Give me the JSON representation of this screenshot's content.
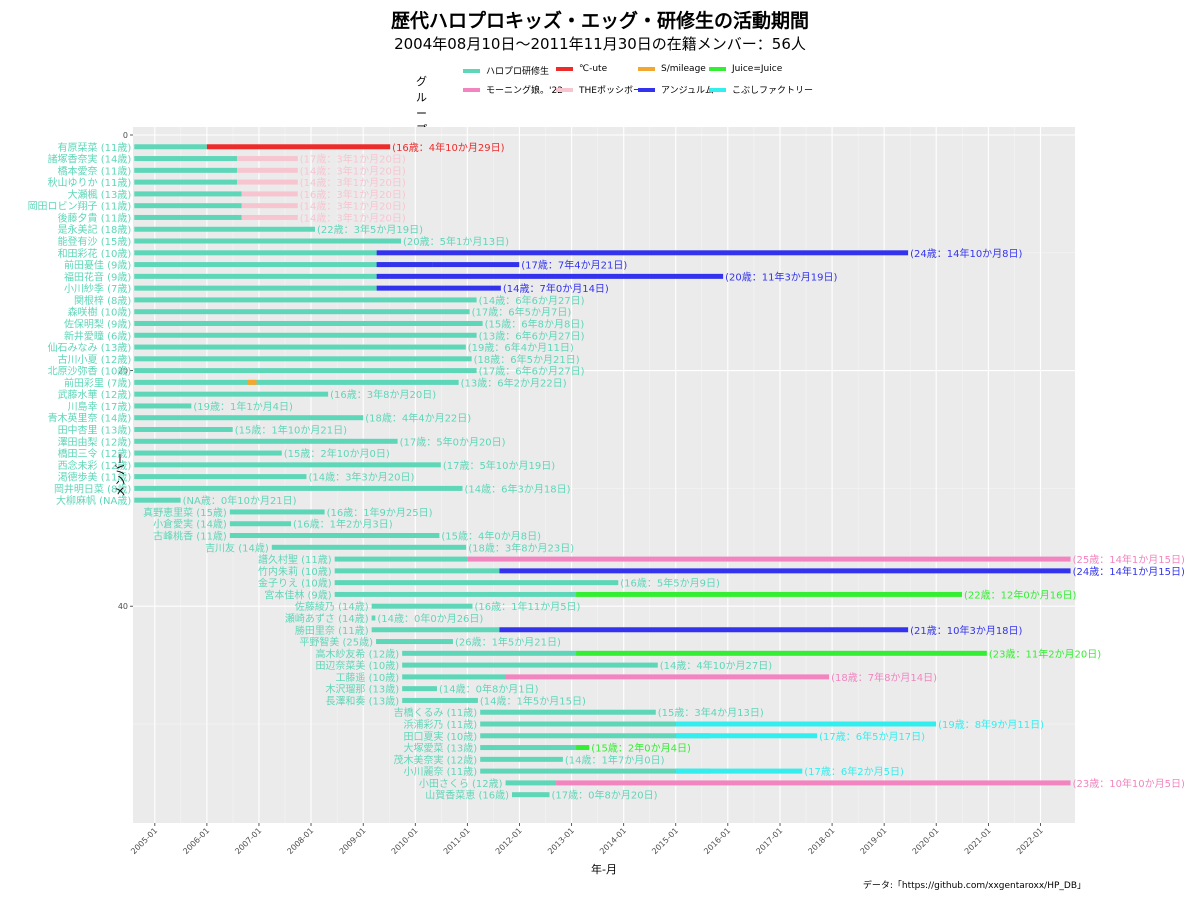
{
  "header": {
    "title": "歴代ハロプロキッズ・エッグ・研修生の活動期間",
    "subtitle": "2004年08月10日～2011年11月30日の在籍メンバー：56人"
  },
  "legend": {
    "title": "グループ",
    "items": [
      {
        "label": "ハロプロ研修生",
        "color": "#5ed6b8"
      },
      {
        "label": "モーニング娘。'22",
        "color": "#f285c0"
      },
      {
        "label": "℃-ute",
        "color": "#ee2b2b"
      },
      {
        "label": "THEポッシボー",
        "color": "#f7c5d0"
      },
      {
        "label": "S/mileage",
        "color": "#f2a830"
      },
      {
        "label": "アンジュルム",
        "color": "#3333ee"
      },
      {
        "label": "Juice=Juice",
        "color": "#33ee33"
      },
      {
        "label": "こぶしファクトリー",
        "color": "#33eeee"
      }
    ]
  },
  "caption": "データ:「https://github.com/xxgentaroxx/HP_DB」",
  "chart_data": {
    "type": "gantt",
    "xlabel": "年-月",
    "ylabel": "メンバー",
    "x_ticks": [
      "2005-01",
      "2006-01",
      "2007-01",
      "2008-01",
      "2009-01",
      "2010-01",
      "2011-01",
      "2012-01",
      "2013-01",
      "2014-01",
      "2015-01",
      "2016-01",
      "2017-01",
      "2018-01",
      "2019-01",
      "2020-01",
      "2021-01",
      "2022-01"
    ],
    "y_ticks": [
      "0",
      "20",
      "40"
    ],
    "xlim": [
      "2004-08-01",
      "2022-08-31"
    ],
    "grid": true,
    "rows": [
      {
        "label": "有原栞菜 (11歳)",
        "note": "(16歳：4年10か月29日)",
        "note_color": "#ee2b2b",
        "segs": [
          [
            "2004-08-10",
            "2006-01-01",
            "#5ed6b8"
          ],
          [
            "2006-01-01",
            "2009-07-09",
            "#ee2b2b"
          ]
        ]
      },
      {
        "label": "諸塚香奈実 (14歳)",
        "note": "(17歳：3年1か月20日)",
        "note_color": "#f7c5d0",
        "segs": [
          [
            "2004-08-10",
            "2006-08-01",
            "#5ed6b8"
          ],
          [
            "2006-08-01",
            "2007-09-30",
            "#f7c5d0"
          ]
        ]
      },
      {
        "label": "橋本愛奈 (11歳)",
        "note": "(14歳：3年1か月20日)",
        "note_color": "#f7c5d0",
        "segs": [
          [
            "2004-08-10",
            "2006-08-01",
            "#5ed6b8"
          ],
          [
            "2006-08-01",
            "2007-09-30",
            "#f7c5d0"
          ]
        ]
      },
      {
        "label": "秋山ゆりか (11歳)",
        "note": "(14歳：3年1か月20日)",
        "note_color": "#f7c5d0",
        "segs": [
          [
            "2004-08-10",
            "2006-08-01",
            "#5ed6b8"
          ],
          [
            "2006-08-01",
            "2007-09-30",
            "#f7c5d0"
          ]
        ]
      },
      {
        "label": "大瀬楓 (13歳)",
        "note": "(16歳：3年1か月20日)",
        "note_color": "#f7c5d0",
        "segs": [
          [
            "2004-08-10",
            "2006-09-01",
            "#5ed6b8"
          ],
          [
            "2006-09-01",
            "2007-09-30",
            "#f7c5d0"
          ]
        ]
      },
      {
        "label": "岡田ロビン翔子 (11歳)",
        "note": "(14歳：3年1か月20日)",
        "note_color": "#f7c5d0",
        "segs": [
          [
            "2004-08-10",
            "2006-09-01",
            "#5ed6b8"
          ],
          [
            "2006-09-01",
            "2007-09-30",
            "#f7c5d0"
          ]
        ]
      },
      {
        "label": "後藤夕貴 (11歳)",
        "note": "(14歳：3年1か月20日)",
        "note_color": "#f7c5d0",
        "segs": [
          [
            "2004-08-10",
            "2006-09-01",
            "#5ed6b8"
          ],
          [
            "2006-09-01",
            "2007-09-30",
            "#f7c5d0"
          ]
        ]
      },
      {
        "label": "是永美記 (18歳)",
        "note": "(22歳：3年5か月19日)",
        "note_color": "#5ed6b8",
        "segs": [
          [
            "2004-08-10",
            "2008-01-29",
            "#5ed6b8"
          ]
        ]
      },
      {
        "label": "能登有沙 (15歳)",
        "note": "(20歳：5年1か月13日)",
        "note_color": "#5ed6b8",
        "segs": [
          [
            "2004-08-10",
            "2009-09-23",
            "#5ed6b8"
          ]
        ]
      },
      {
        "label": "和田彩花 (10歳)",
        "note": "(24歳：14年10か月8日)",
        "note_color": "#3333ee",
        "segs": [
          [
            "2004-08-10",
            "2009-04-05",
            "#5ed6b8"
          ],
          [
            "2009-04-05",
            "2019-06-18",
            "#3333ee"
          ]
        ]
      },
      {
        "label": "前田憂佳 (9歳)",
        "note": "(17歳：7年4か月21日)",
        "note_color": "#3333ee",
        "segs": [
          [
            "2004-08-10",
            "2010-05-01",
            "#5ed6b8"
          ],
          [
            "2009-04-05",
            "2010-05-01",
            "#3333ee"
          ],
          [
            "2010-05-01",
            "2011-12-31",
            "#3333ee"
          ]
        ]
      },
      {
        "label": "福田花音 (9歳)",
        "note": "(20歳：11年3か月19日)",
        "note_color": "#3333ee",
        "segs": [
          [
            "2004-08-10",
            "2009-04-05",
            "#5ed6b8"
          ],
          [
            "2009-04-05",
            "2015-11-29",
            "#3333ee"
          ]
        ]
      },
      {
        "label": "小川紗季 (7歳)",
        "note": "(14歳：7年0か月14日)",
        "note_color": "#3333ee",
        "segs": [
          [
            "2004-08-10",
            "2009-04-05",
            "#5ed6b8"
          ],
          [
            "2009-04-05",
            "2011-08-24",
            "#3333ee"
          ]
        ]
      },
      {
        "label": "関根梓 (8歳)",
        "note": "(14歳：6年6か月27日)",
        "note_color": "#5ed6b8",
        "segs": [
          [
            "2004-08-10",
            "2011-03-07",
            "#5ed6b8"
          ]
        ]
      },
      {
        "label": "森咲樹 (10歳)",
        "note": "(17歳：6年5か月7日)",
        "note_color": "#5ed6b8",
        "segs": [
          [
            "2004-08-10",
            "2011-01-17",
            "#5ed6b8"
          ]
        ]
      },
      {
        "label": "佐保明梨 (9歳)",
        "note": "(15歳：6年8か月8日)",
        "note_color": "#5ed6b8",
        "segs": [
          [
            "2004-08-10",
            "2011-04-18",
            "#5ed6b8"
          ]
        ]
      },
      {
        "label": "新井愛瞳 (6歳)",
        "note": "(13歳：6年6か月27日)",
        "note_color": "#5ed6b8",
        "segs": [
          [
            "2004-08-10",
            "2011-03-07",
            "#5ed6b8"
          ]
        ]
      },
      {
        "label": "仙石みなみ (13歳)",
        "note": "(19歳：6年4か月11日)",
        "note_color": "#5ed6b8",
        "segs": [
          [
            "2004-08-10",
            "2010-12-21",
            "#5ed6b8"
          ]
        ]
      },
      {
        "label": "古川小夏 (12歳)",
        "note": "(18歳：6年5か月21日)",
        "note_color": "#5ed6b8",
        "segs": [
          [
            "2004-08-10",
            "2011-01-31",
            "#5ed6b8"
          ]
        ]
      },
      {
        "label": "北原沙弥香 (10歳)",
        "note": "(17歳：6年6か月27日)",
        "note_color": "#5ed6b8",
        "segs": [
          [
            "2004-08-10",
            "2011-03-07",
            "#5ed6b8"
          ]
        ]
      },
      {
        "label": "前田彩里 (7歳)",
        "note": "(13歳：6年2か月22日)",
        "note_color": "#5ed6b8",
        "segs": [
          [
            "2004-08-10",
            "2010-11-01",
            "#5ed6b8"
          ],
          [
            "2006-10-15",
            "2006-12-15",
            "#f2a830"
          ]
        ]
      },
      {
        "label": "武藤水華 (12歳)",
        "note": "(16歳：3年8か月20日)",
        "note_color": "#5ed6b8",
        "segs": [
          [
            "2004-08-10",
            "2008-04-30",
            "#5ed6b8"
          ]
        ]
      },
      {
        "label": "川島幸 (17歳)",
        "note": "(19歳：1年1か月4日)",
        "note_color": "#5ed6b8",
        "segs": [
          [
            "2004-08-10",
            "2005-09-14",
            "#5ed6b8"
          ]
        ]
      },
      {
        "label": "青木英里奈 (14歳)",
        "note": "(18歳：4年4か月22日)",
        "note_color": "#5ed6b8",
        "segs": [
          [
            "2004-08-10",
            "2009-01-01",
            "#5ed6b8"
          ]
        ]
      },
      {
        "label": "田中杏里 (13歳)",
        "note": "(15歳：1年10か月21日)",
        "note_color": "#5ed6b8",
        "segs": [
          [
            "2004-08-10",
            "2006-07-01",
            "#5ed6b8"
          ]
        ]
      },
      {
        "label": "澤田由梨 (12歳)",
        "note": "(17歳：5年0か月20日)",
        "note_color": "#5ed6b8",
        "segs": [
          [
            "2004-08-10",
            "2009-08-30",
            "#5ed6b8"
          ]
        ]
      },
      {
        "label": "橋田三令 (12歳)",
        "note": "(15歳：2年10か月0日)",
        "note_color": "#5ed6b8",
        "segs": [
          [
            "2004-08-10",
            "2007-06-10",
            "#5ed6b8"
          ]
        ]
      },
      {
        "label": "西念未彩 (12歳)",
        "note": "(17歳：5年10か月19日)",
        "note_color": "#5ed6b8",
        "segs": [
          [
            "2004-08-10",
            "2010-06-29",
            "#5ed6b8"
          ]
        ]
      },
      {
        "label": "渇德歩美 (11歳)",
        "note": "(14歳：3年3か月20日)",
        "note_color": "#5ed6b8",
        "segs": [
          [
            "2004-08-10",
            "2007-11-30",
            "#5ed6b8"
          ]
        ]
      },
      {
        "label": "岡井明日菜 (8歳)",
        "note": "(14歳：6年3か月18日)",
        "note_color": "#5ed6b8",
        "segs": [
          [
            "2004-08-10",
            "2010-11-28",
            "#5ed6b8"
          ]
        ]
      },
      {
        "label": "大柳麻帆 (NA歳)",
        "note": "(NA歳：0年10か月21日)",
        "note_color": "#5ed6b8",
        "segs": [
          [
            "2004-08-10",
            "2005-07-01",
            "#5ed6b8"
          ]
        ]
      },
      {
        "label": "真野恵里菜 (15歳)",
        "note": "(16歳：1年9か月25日)",
        "note_color": "#5ed6b8",
        "segs": [
          [
            "2006-06-11",
            "2008-04-05",
            "#5ed6b8"
          ]
        ]
      },
      {
        "label": "小倉愛実 (14歳)",
        "note": "(16歳：1年2か月3日)",
        "note_color": "#5ed6b8",
        "segs": [
          [
            "2006-06-11",
            "2007-08-14",
            "#5ed6b8"
          ]
        ]
      },
      {
        "label": "古峰桃香 (11歳)",
        "note": "(15歳：4年0か月8日)",
        "note_color": "#5ed6b8",
        "segs": [
          [
            "2006-06-11",
            "2010-06-19",
            "#5ed6b8"
          ]
        ]
      },
      {
        "label": "吉川友 (14歳)",
        "note": "(18歳：3年8か月23日)",
        "note_color": "#5ed6b8",
        "segs": [
          [
            "2007-04-01",
            "2010-12-24",
            "#5ed6b8"
          ]
        ]
      },
      {
        "label": "譜久村聖 (11歳)",
        "note": "(25歳：14年1か月15日)",
        "note_color": "#f285c0",
        "segs": [
          [
            "2008-06-15",
            "2011-01-01",
            "#5ed6b8"
          ],
          [
            "2011-01-01",
            "2022-07-31",
            "#f285c0"
          ]
        ]
      },
      {
        "label": "竹内朱莉 (10歳)",
        "note": "(24歳：14年1か月15日)",
        "note_color": "#3333ee",
        "segs": [
          [
            "2008-06-15",
            "2011-08-14",
            "#5ed6b8"
          ],
          [
            "2011-08-14",
            "2022-07-31",
            "#3333ee"
          ]
        ]
      },
      {
        "label": "金子りえ (10歳)",
        "note": "(16歳：5年5か月9日)",
        "note_color": "#5ed6b8",
        "segs": [
          [
            "2008-06-15",
            "2013-11-24",
            "#5ed6b8"
          ]
        ]
      },
      {
        "label": "宮本佳林 (9歳)",
        "note": "(22歳：12年0か月16日)",
        "note_color": "#33ee33",
        "segs": [
          [
            "2008-06-15",
            "2013-02-01",
            "#5ed6b8"
          ],
          [
            "2013-02-01",
            "2020-06-30",
            "#33ee33"
          ]
        ]
      },
      {
        "label": "佐藤綾乃 (14歳)",
        "note": "(16歳：1年11か月5日)",
        "note_color": "#5ed6b8",
        "segs": [
          [
            "2009-03-01",
            "2011-02-06",
            "#5ed6b8"
          ]
        ]
      },
      {
        "label": "瀬崎あずさ (14歳)",
        "note": "(14歳：0年0か月26日)",
        "note_color": "#5ed6b8",
        "segs": [
          [
            "2009-03-01",
            "2009-03-27",
            "#5ed6b8"
          ]
        ]
      },
      {
        "label": "勝田里奈 (11歳)",
        "note": "(21歳：10年3か月18日)",
        "note_color": "#3333ee",
        "segs": [
          [
            "2009-03-01",
            "2011-08-14",
            "#5ed6b8"
          ],
          [
            "2011-08-14",
            "2019-06-18",
            "#3333ee"
          ]
        ]
      },
      {
        "label": "平野智美 (25歳)",
        "note": "(26歳：1年5か月21日)",
        "note_color": "#5ed6b8",
        "segs": [
          [
            "2009-04-01",
            "2010-09-22",
            "#5ed6b8"
          ]
        ]
      },
      {
        "label": "高木紗友希 (12歳)",
        "note": "(23歳：11年2か月20日)",
        "note_color": "#33ee33",
        "segs": [
          [
            "2009-10-01",
            "2013-02-01",
            "#5ed6b8"
          ],
          [
            "2013-02-01",
            "2020-12-21",
            "#33ee33"
          ]
        ]
      },
      {
        "label": "田辺奈菜美 (10歳)",
        "note": "(14歳：4年10か月27日)",
        "note_color": "#5ed6b8",
        "segs": [
          [
            "2009-10-01",
            "2014-08-28",
            "#5ed6b8"
          ]
        ]
      },
      {
        "label": "工藤遥 (10歳)",
        "note": "(18歳：7年8か月14日)",
        "note_color": "#f285c0",
        "segs": [
          [
            "2009-10-01",
            "2011-09-29",
            "#5ed6b8"
          ],
          [
            "2011-09-29",
            "2017-12-11",
            "#f285c0"
          ]
        ]
      },
      {
        "label": "木沢瑠那 (13歳)",
        "note": "(14歳：0年8か月1日)",
        "note_color": "#5ed6b8",
        "segs": [
          [
            "2009-10-01",
            "2010-06-02",
            "#5ed6b8"
          ]
        ]
      },
      {
        "label": "長澤和奏 (13歳)",
        "note": "(14歳：1年5か月15日)",
        "note_color": "#5ed6b8",
        "segs": [
          [
            "2009-10-01",
            "2011-03-16",
            "#5ed6b8"
          ]
        ]
      },
      {
        "label": "吉橋くるみ (11歳)",
        "note": "(15歳：3年4か月13日)",
        "note_color": "#5ed6b8",
        "segs": [
          [
            "2011-04-01",
            "2014-08-14",
            "#5ed6b8"
          ]
        ]
      },
      {
        "label": "浜浦彩乃 (11歳)",
        "note": "(19歳：8年9か月11日)",
        "note_color": "#33eeee",
        "segs": [
          [
            "2011-04-01",
            "2015-09-01",
            "#5ed6b8"
          ],
          [
            "2015-01-01",
            "2019-12-31",
            "#33eeee"
          ]
        ]
      },
      {
        "label": "田口夏実 (10歳)",
        "note": "(17歳：6年5か月17日)",
        "note_color": "#33eeee",
        "segs": [
          [
            "2011-04-01",
            "2015-09-01",
            "#5ed6b8"
          ],
          [
            "2015-01-01",
            "2017-09-18",
            "#33eeee"
          ]
        ]
      },
      {
        "label": "大塚愛菜 (13歳)",
        "note": "(15歳：2年0か月4日)",
        "note_color": "#33ee33",
        "segs": [
          [
            "2011-04-01",
            "2013-02-01",
            "#5ed6b8"
          ],
          [
            "2013-02-01",
            "2013-05-05",
            "#33ee33"
          ]
        ]
      },
      {
        "label": "茂木美奈実 (12歳)",
        "note": "(14歳：1年7か月0日)",
        "note_color": "#5ed6b8",
        "segs": [
          [
            "2011-04-01",
            "2012-11-01",
            "#5ed6b8"
          ]
        ]
      },
      {
        "label": "小川麗奈 (11歳)",
        "note": "(17歳：6年2か月5日)",
        "note_color": "#33eeee",
        "segs": [
          [
            "2011-04-01",
            "2015-09-01",
            "#5ed6b8"
          ],
          [
            "2015-01-01",
            "2017-06-06",
            "#33eeee"
          ]
        ]
      },
      {
        "label": "小田さくら (12歳)",
        "note": "(23歳：10年10か月5日)",
        "note_color": "#f285c0",
        "segs": [
          [
            "2011-09-26",
            "2012-09-14",
            "#5ed6b8"
          ],
          [
            "2012-09-14",
            "2022-07-31",
            "#f285c0"
          ]
        ]
      },
      {
        "label": "山賀香菜恵 (16歳)",
        "note": "(17歳：0年8か月20日)",
        "note_color": "#5ed6b8",
        "segs": [
          [
            "2011-11-10",
            "2012-07-30",
            "#5ed6b8"
          ]
        ]
      }
    ]
  }
}
